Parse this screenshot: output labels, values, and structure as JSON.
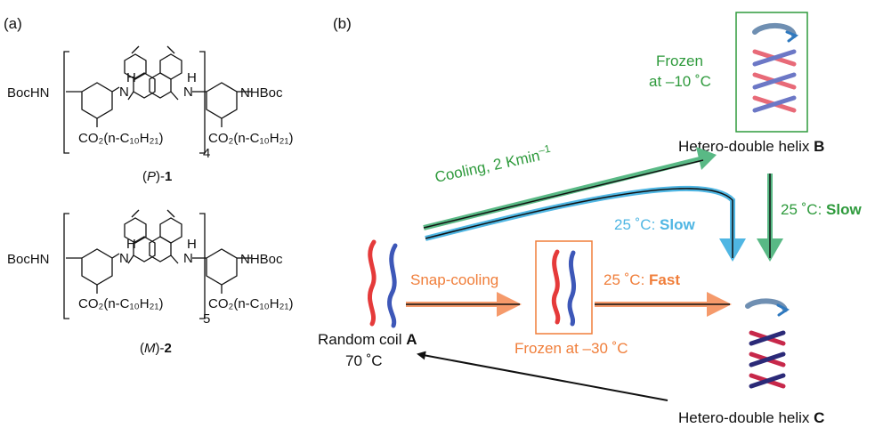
{
  "colors": {
    "green": "#2e9a3c",
    "green_arrow": "#59b985",
    "blue_arrow": "#4fb6e3",
    "orange": "#f07e3a",
    "orange_arrow": "#f59a6b",
    "red_strand": "#e53a3a",
    "blue_strand": "#3d57b8",
    "navy_strand": "#2b2a78",
    "black": "#111111"
  },
  "panel_a": {
    "label": "(a)",
    "compound1": {
      "left_group": "BocHN",
      "right_group": "NHBoc",
      "ester_left": "CO₂(n-C₁₀H₂₁)",
      "ester_right": "CO₂(n-C₁₀H₂₁)",
      "h_left": "H",
      "h_right": "H",
      "n_left": "N",
      "n_right": "N",
      "subscript": "4",
      "caption_open": "(",
      "caption_italic": "P",
      "caption_close": ")-",
      "caption_bold": "1"
    },
    "compound2": {
      "left_group": "BocHN",
      "right_group": "NHBoc",
      "ester_left": "CO₂(n-C₁₀H₂₁)",
      "ester_right": "CO₂(n-C₁₀H₂₁)",
      "h_left": "H",
      "h_right": "H",
      "n_left": "N",
      "n_right": "N",
      "subscript": "5",
      "caption_open": "(",
      "caption_italic": "M",
      "caption_close": ")-",
      "caption_bold": "2"
    }
  },
  "panel_b": {
    "label": "(b)",
    "frozen_b_line1": "Frozen",
    "frozen_b_line2": "at –10 ˚C",
    "hetero_b": "Hetero-double helix ",
    "hetero_b_letter": "B",
    "cooling": "Cooling, 2 Kmin",
    "cooling_sup": "–1",
    "slow_blue_prefix": "25 ˚C: ",
    "slow_blue_bold": "Slow",
    "slow_green_prefix": "25 ˚C: ",
    "slow_green_bold": "Slow",
    "snap_cooling": "Snap-cooling",
    "fast_prefix": "25 ˚C: ",
    "fast_bold": "Fast",
    "random_coil": "Random coil ",
    "random_coil_letter": "A",
    "temp_70": "70 ˚C",
    "frozen_30": "Frozen at –30 ˚C",
    "hetero_c": "Hetero-double helix ",
    "hetero_c_letter": "C"
  }
}
